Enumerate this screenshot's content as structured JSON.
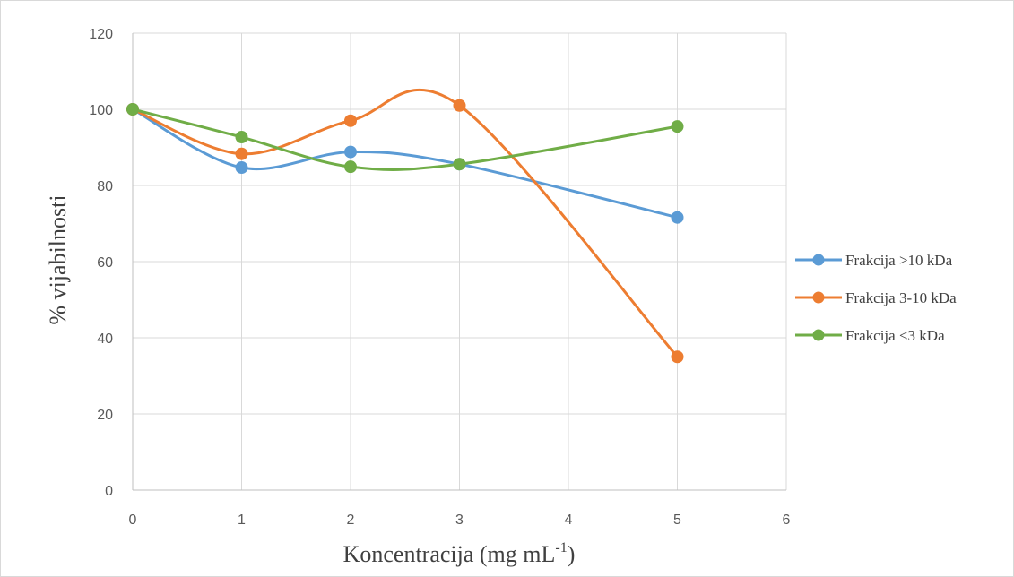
{
  "chart_data": {
    "type": "line",
    "smoothed": true,
    "title": "",
    "xlabel": "Koncentracija (mg mL",
    "xlabel_superscript": "-1",
    "xlabel_suffix": ")",
    "ylabel": "% vijabilnosti",
    "xlim": [
      0,
      6
    ],
    "ylim": [
      0,
      120
    ],
    "xticks": [
      0,
      1,
      2,
      3,
      4,
      5,
      6
    ],
    "yticks": [
      0,
      20,
      40,
      60,
      80,
      100,
      120
    ],
    "grid": true,
    "legend_position": "right",
    "series": [
      {
        "name": "Frakcija >10 kDa",
        "color": "#5b9bd5",
        "x": [
          0,
          1,
          2,
          3,
          5
        ],
        "y": [
          100,
          84.7,
          88.8,
          85.6,
          71.6
        ]
      },
      {
        "name": "Frakcija 3-10 kDa",
        "color": "#ed7d31",
        "x": [
          0,
          1,
          2,
          3,
          5
        ],
        "y": [
          100,
          88.3,
          97,
          101,
          35
        ]
      },
      {
        "name": "Frakcija <3 kDa",
        "color": "#70ad47",
        "x": [
          0,
          1,
          2,
          3,
          5
        ],
        "y": [
          100,
          92.7,
          84.9,
          85.6,
          95.5
        ]
      }
    ]
  }
}
